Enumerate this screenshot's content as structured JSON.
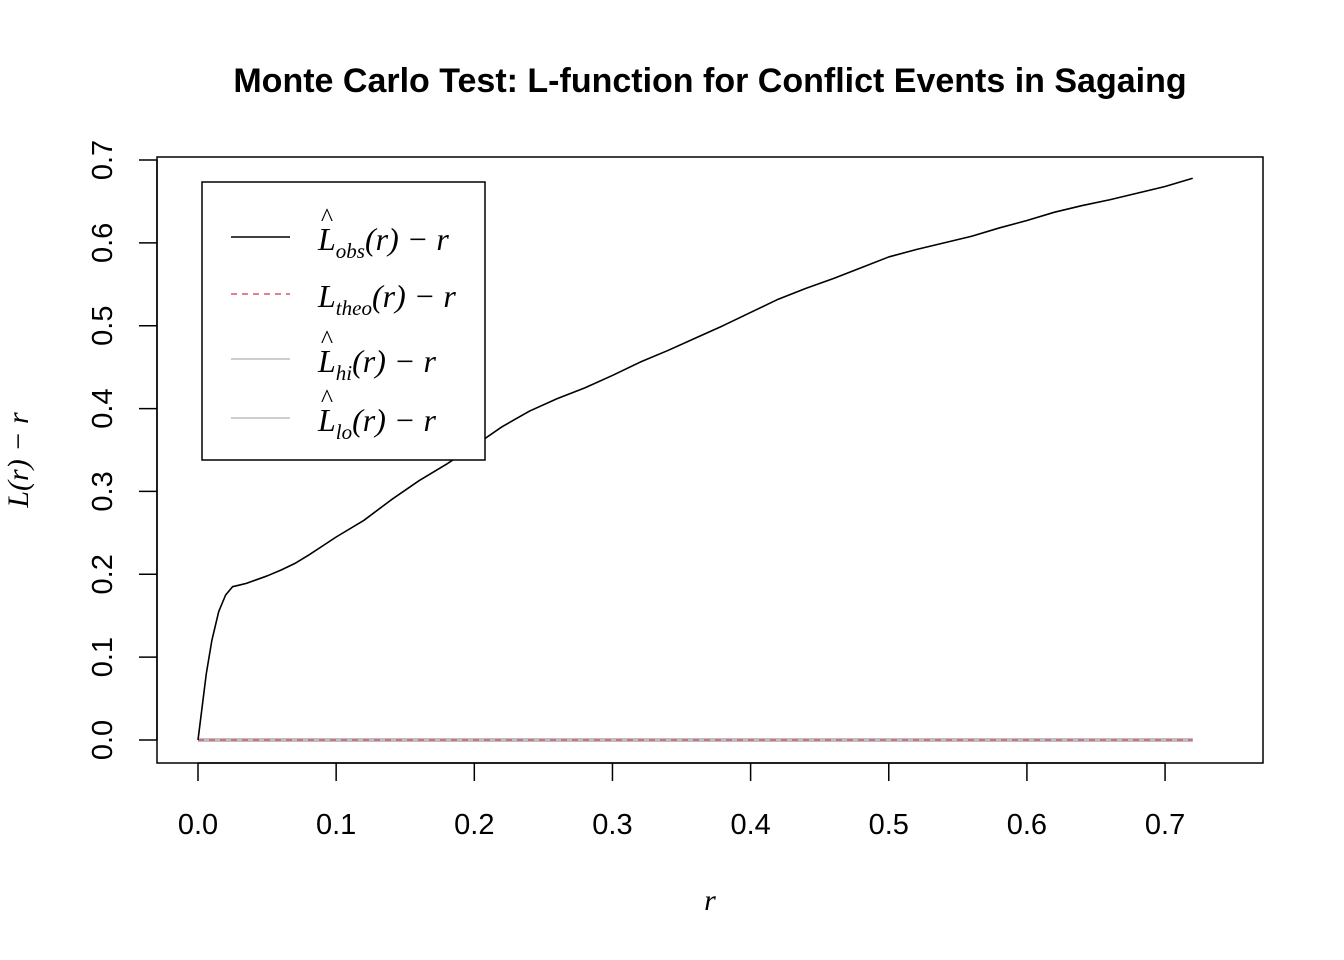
{
  "chart_data": {
    "type": "line",
    "title": "Monte Carlo Test: L-function for Conflict Events in Sagaing",
    "xlabel": "r",
    "ylabel": "L(r) − r",
    "xlim": [
      0,
      0.72
    ],
    "ylim": [
      0,
      0.7
    ],
    "xticks": [
      0.0,
      0.1,
      0.2,
      0.3,
      0.4,
      0.5,
      0.6,
      0.7
    ],
    "xtick_labels": [
      "0.0",
      "0.1",
      "0.2",
      "0.3",
      "0.4",
      "0.5",
      "0.6",
      "0.7"
    ],
    "yticks": [
      0.0,
      0.1,
      0.2,
      0.3,
      0.4,
      0.5,
      0.6,
      0.7
    ],
    "ytick_labels": [
      "0.0",
      "0.1",
      "0.2",
      "0.3",
      "0.4",
      "0.5",
      "0.6",
      "0.7"
    ],
    "grid": false,
    "legend_position": "top-left",
    "series": [
      {
        "key": "obs",
        "legend_symbol": "L",
        "legend_hat": "^",
        "legend_sub": "obs",
        "legend_suffix": "(r) − r",
        "color": "#000000",
        "dash": "solid",
        "x": [
          0,
          0.003,
          0.006,
          0.01,
          0.015,
          0.02,
          0.025,
          0.03,
          0.035,
          0.04,
          0.05,
          0.06,
          0.07,
          0.08,
          0.09,
          0.1,
          0.12,
          0.14,
          0.16,
          0.18,
          0.2,
          0.22,
          0.24,
          0.26,
          0.28,
          0.3,
          0.32,
          0.34,
          0.36,
          0.38,
          0.4,
          0.42,
          0.44,
          0.46,
          0.48,
          0.5,
          0.52,
          0.54,
          0.56,
          0.58,
          0.6,
          0.62,
          0.64,
          0.66,
          0.68,
          0.7,
          0.72
        ],
        "y": [
          0,
          0.04,
          0.08,
          0.12,
          0.155,
          0.175,
          0.185,
          0.187,
          0.189,
          0.192,
          0.198,
          0.205,
          0.213,
          0.223,
          0.234,
          0.245,
          0.265,
          0.29,
          0.313,
          0.333,
          0.355,
          0.378,
          0.397,
          0.412,
          0.425,
          0.44,
          0.456,
          0.47,
          0.485,
          0.5,
          0.516,
          0.532,
          0.545,
          0.557,
          0.57,
          0.583,
          0.592,
          0.6,
          0.608,
          0.618,
          0.627,
          0.637,
          0.645,
          0.652,
          0.66,
          0.668,
          0.678
        ]
      },
      {
        "key": "theo",
        "legend_symbol": "L",
        "legend_hat": "",
        "legend_sub": "theo",
        "legend_suffix": "(r) − r",
        "color": "#DF536B",
        "dash": "dashed",
        "x": [
          0,
          0.72
        ],
        "y": [
          0,
          0
        ]
      },
      {
        "key": "hi",
        "legend_symbol": "L",
        "legend_hat": "^",
        "legend_sub": "hi",
        "legend_suffix": "(r) − r",
        "color": "#BEBEBE",
        "dash": "solid",
        "x": [
          0,
          0.72
        ],
        "y": [
          0,
          0
        ]
      },
      {
        "key": "lo",
        "legend_symbol": "L",
        "legend_hat": "^",
        "legend_sub": "lo",
        "legend_suffix": "(r) − r",
        "color": "#BEBEBE",
        "dash": "solid",
        "x": [
          0,
          0.72
        ],
        "y": [
          0,
          0
        ]
      }
    ]
  }
}
